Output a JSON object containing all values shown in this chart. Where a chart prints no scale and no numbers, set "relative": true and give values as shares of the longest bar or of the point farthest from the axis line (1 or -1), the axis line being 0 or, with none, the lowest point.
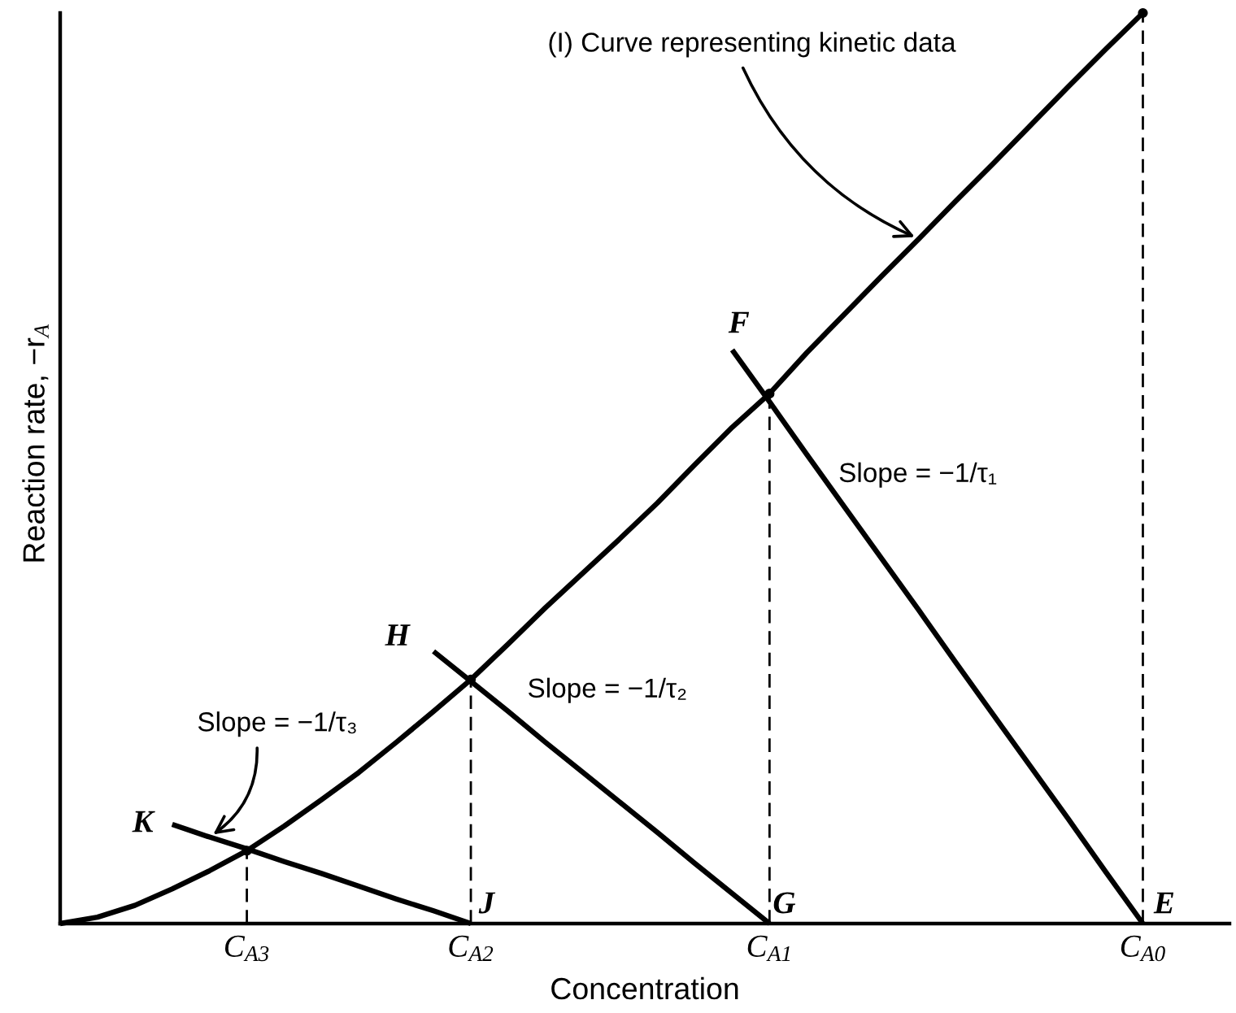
{
  "chart_data": {
    "type": "line",
    "relative": true,
    "line_style": "solid",
    "xlabel": "Concentration",
    "ylabel": "Reaction rate, −r$_{A}$",
    "categories": [
      null,
      null,
      null,
      null,
      null,
      "C$_{A3}$",
      null,
      null,
      null,
      null,
      null,
      "C$_{A2}$",
      null,
      null,
      null,
      null,
      null,
      null,
      null,
      "C$_{A1}$",
      null,
      null,
      null,
      null,
      null,
      null,
      null,
      null,
      null,
      "C$_{A0}$"
    ],
    "series": [
      {
        "type": "lollipop",
        "color": "#000000",
        "line_style": "dashed",
        "marker": "circle",
        "values": [
          null,
          null,
          null,
          null,
          null,
          0.08,
          null,
          null,
          null,
          null,
          null,
          0.268,
          null,
          null,
          null,
          null,
          null,
          null,
          null,
          0.582,
          null,
          null,
          null,
          null,
          null,
          null,
          null,
          null,
          null,
          1.0
        ]
      },
      {
        "color": "#000000",
        "values": [
          0,
          0.007,
          0.02,
          0.038,
          0.058,
          0.08,
          0.107,
          0.136,
          0.166,
          0.199,
          0.233,
          0.268,
          0.307,
          0.347,
          0.385,
          0.423,
          0.462,
          0.504,
          0.545,
          0.582,
          0.627,
          0.669,
          0.711,
          0.752,
          0.794,
          0.835,
          0.877,
          0.919,
          0.96,
          1.0
        ]
      },
      {
        "color": "#000000",
        "values": [
          null,
          null,
          null,
          null,
          null,
          null,
          null,
          null,
          null,
          null,
          null,
          null,
          null,
          null,
          null,
          null,
          null,
          null,
          0.63,
          0.573,
          0.515,
          0.458,
          0.401,
          0.344,
          0.286,
          0.229,
          0.172,
          0.115,
          0.057,
          0
        ]
      },
      {
        "color": "#000000",
        "values": [
          null,
          null,
          null,
          null,
          null,
          null,
          null,
          null,
          null,
          null,
          0.299,
          0.266,
          0.233,
          0.199,
          0.166,
          0.133,
          0.1,
          0.066,
          0.033,
          0,
          null,
          null,
          null,
          null,
          null,
          null,
          null,
          null,
          null,
          null
        ]
      },
      {
        "color": "#000000",
        "values": [
          null,
          null,
          null,
          0.109,
          0.095,
          0.082,
          0.068,
          0.055,
          0.041,
          0.027,
          0.014,
          0,
          null,
          null,
          null,
          null,
          null,
          null,
          null,
          null,
          null,
          null,
          null,
          null,
          null,
          null,
          null,
          null,
          null,
          null
        ]
      }
    ],
    "annotations": [
      "(I) Curve representing kinetic data",
      "F",
      "Slope = −1/τ₁",
      "H",
      "Slope = −1/τ₂",
      "Slope = −1/τ₃",
      "K",
      "J",
      "G",
      "E"
    ]
  }
}
